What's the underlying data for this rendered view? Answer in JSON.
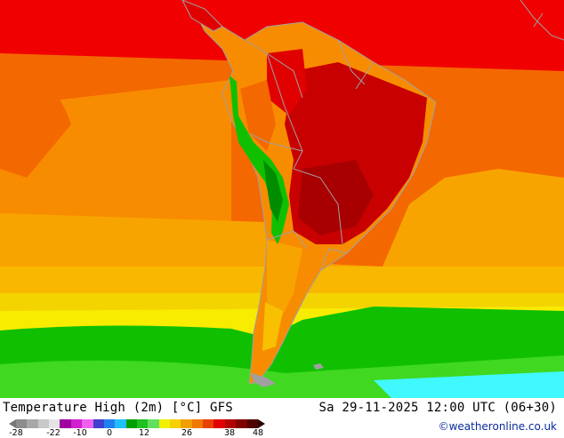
{
  "title": "Temperature High (2m) [°C] GFS",
  "datetime": "Sa 29-11-2025 12:00 UTC (06+30)",
  "credit": "©weatheronline.co.uk",
  "legend": {
    "ticks": [
      "-28",
      "-22",
      "-10",
      "0",
      "12",
      "26",
      "38",
      "48"
    ],
    "colors": [
      "#8c8c8c",
      "#a8a8a8",
      "#c8c8c8",
      "#e4e4e4",
      "#a000a0",
      "#d020d0",
      "#f060f0",
      "#4040d0",
      "#2080f0",
      "#20c0ff",
      "#00a000",
      "#20c020",
      "#60e060",
      "#f0f000",
      "#f8d000",
      "#f0a000",
      "#f07800",
      "#e84000",
      "#e00000",
      "#b00000",
      "#800000",
      "#500000"
    ]
  },
  "map": {
    "region": "South America",
    "colors": {
      "ocean_red": "#f00000",
      "deep_red": "#c80000",
      "orange": "#f46800",
      "light_orange": "#f88c00",
      "amber": "#f8a400",
      "yellow": "#f4d400",
      "bright_yellow": "#f8ec00",
      "green": "#10c000",
      "light_green": "#40d820",
      "dark_green": "#008c00",
      "cyan": "#40f8ff",
      "border": "#a0a0a0"
    }
  }
}
